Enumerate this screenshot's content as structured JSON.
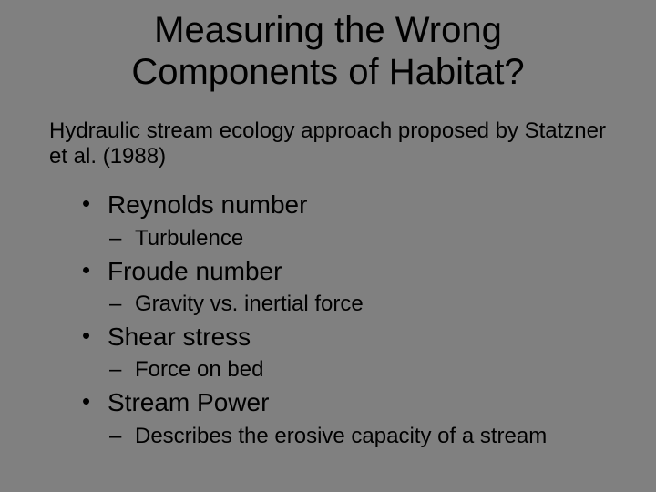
{
  "slide": {
    "title": "Measuring the Wrong Components of Habitat?",
    "intro": "Hydraulic stream ecology approach proposed by Statzner et al. (1988)",
    "items": [
      {
        "label": "Reynolds number",
        "sub": "Turbulence"
      },
      {
        "label": "Froude number",
        "sub": "Gravity vs. inertial force"
      },
      {
        "label": "Shear stress",
        "sub": "Force on bed"
      },
      {
        "label": "Stream Power",
        "sub": "Describes the erosive capacity of a stream"
      }
    ]
  },
  "style": {
    "background_color": "#808080",
    "text_color": "#000000",
    "title_fontsize": 40,
    "intro_fontsize": 24,
    "bullet_fontsize": 28,
    "sub_fontsize": 24,
    "font_family": "Arial"
  }
}
